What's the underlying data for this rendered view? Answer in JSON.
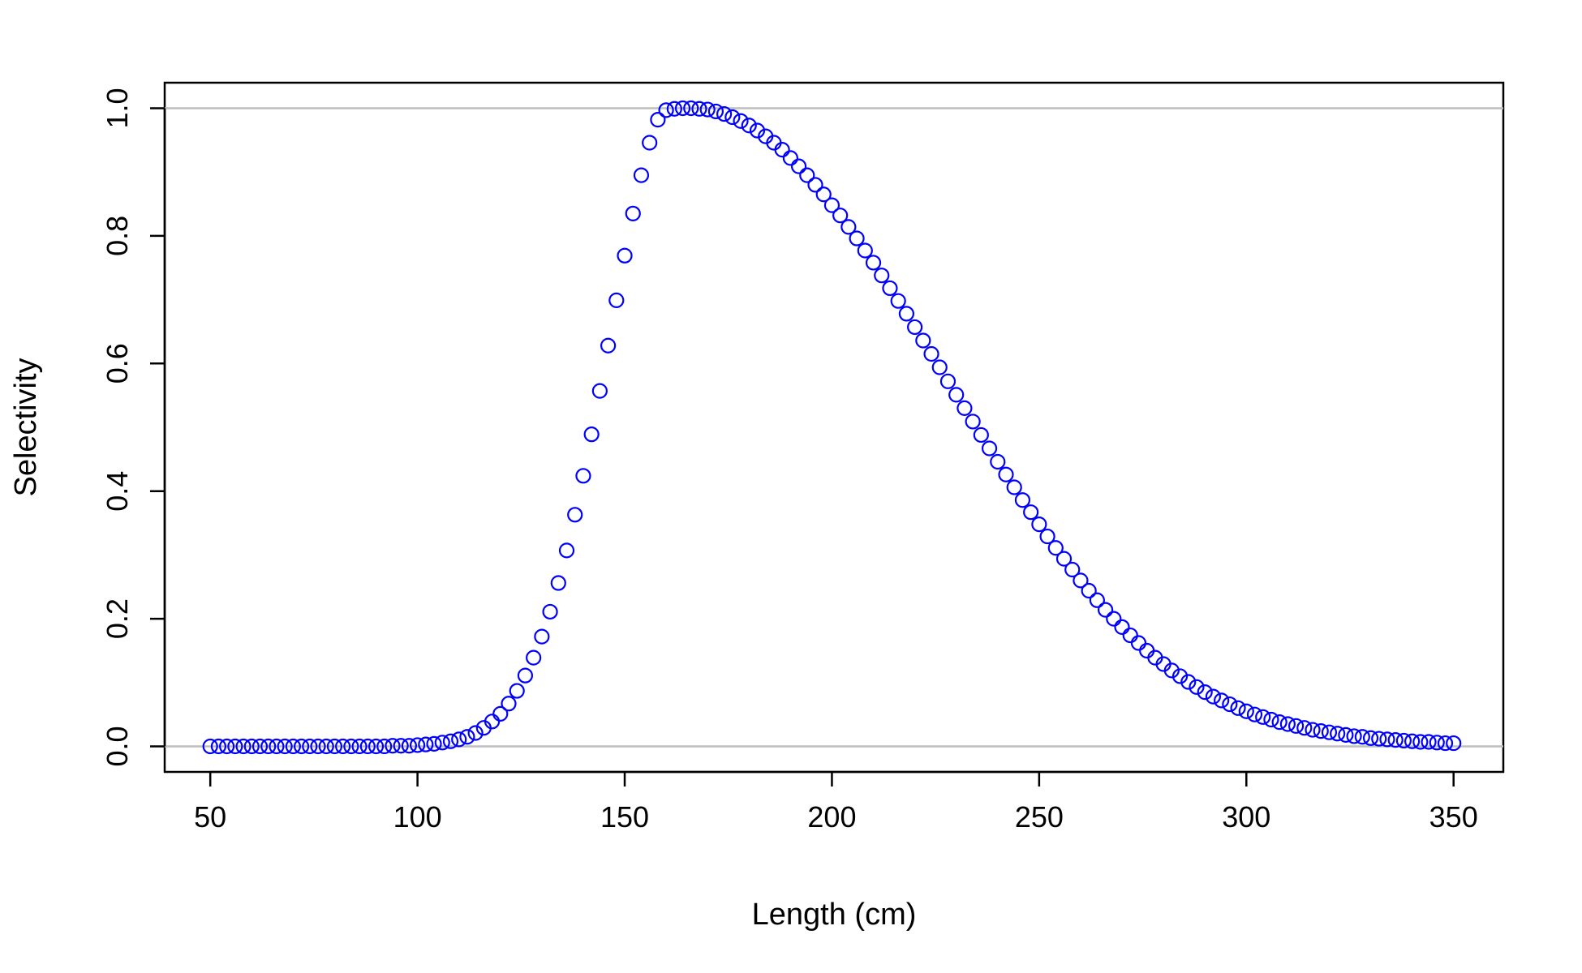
{
  "chart_data": {
    "type": "scatter",
    "title": "",
    "xlabel": "Length (cm)",
    "ylabel": "Selectivity",
    "xlim": [
      39,
      362
    ],
    "ylim": [
      -0.04,
      1.04
    ],
    "xticks": [
      50,
      100,
      150,
      200,
      250,
      300,
      350
    ],
    "yticks": [
      0.0,
      0.2,
      0.4,
      0.6,
      0.8,
      1.0
    ],
    "ytick_labels": [
      "0.0",
      "0.2",
      "0.4",
      "0.6",
      "0.8",
      "1.0"
    ],
    "reference_lines_y": [
      0.0,
      1.0
    ],
    "reference_line_color": "#bebebe",
    "point_color": "#0000ff",
    "marker": "open-circle",
    "grid": false,
    "series": [
      {
        "x": [
          50,
          52,
          54,
          56,
          58,
          60,
          62,
          64,
          66,
          68,
          70,
          72,
          74,
          76,
          78,
          80,
          82,
          84,
          86,
          88,
          90,
          92,
          94,
          96,
          98,
          100,
          102,
          104,
          106,
          108,
          110,
          112,
          114,
          116,
          118,
          120,
          122,
          124,
          126,
          128,
          130,
          132,
          134,
          136,
          138,
          140,
          142,
          144,
          146,
          148,
          150,
          152,
          154,
          156,
          158,
          160,
          162,
          164,
          166,
          168,
          170,
          172,
          174,
          176,
          178,
          180,
          182,
          184,
          186,
          188,
          190,
          192,
          194,
          196,
          198,
          200,
          202,
          204,
          206,
          208,
          210,
          212,
          214,
          216,
          218,
          220,
          222,
          224,
          226,
          228,
          230,
          232,
          234,
          236,
          238,
          240,
          242,
          244,
          246,
          248,
          250,
          252,
          254,
          256,
          258,
          260,
          262,
          264,
          266,
          268,
          270,
          272,
          274,
          276,
          278,
          280,
          282,
          284,
          286,
          288,
          290,
          292,
          294,
          296,
          298,
          300,
          302,
          304,
          306,
          308,
          310,
          312,
          314,
          316,
          318,
          320,
          322,
          324,
          326,
          328,
          330,
          332,
          334,
          336,
          338,
          340,
          342,
          344,
          346,
          348,
          350
        ],
        "y": [
          0.0,
          0.0,
          0.0,
          0.0,
          0.0,
          0.0,
          0.0,
          0.0,
          0.0,
          0.0,
          0.0,
          0.0,
          0.0,
          0.0,
          0.0,
          0.0,
          0.0,
          0.0,
          0.0,
          0.0,
          0.0,
          0.0,
          0.001,
          0.001,
          0.001,
          0.002,
          0.003,
          0.004,
          0.006,
          0.008,
          0.011,
          0.015,
          0.021,
          0.029,
          0.039,
          0.051,
          0.067,
          0.087,
          0.111,
          0.139,
          0.172,
          0.211,
          0.256,
          0.307,
          0.363,
          0.424,
          0.489,
          0.557,
          0.628,
          0.699,
          0.769,
          0.835,
          0.895,
          0.946,
          0.982,
          0.997,
          0.999,
          1.0,
          1.0,
          0.999,
          0.998,
          0.995,
          0.991,
          0.986,
          0.98,
          0.973,
          0.965,
          0.956,
          0.946,
          0.935,
          0.922,
          0.909,
          0.895,
          0.88,
          0.865,
          0.848,
          0.832,
          0.814,
          0.796,
          0.777,
          0.758,
          0.738,
          0.718,
          0.698,
          0.678,
          0.657,
          0.636,
          0.615,
          0.594,
          0.572,
          0.551,
          0.53,
          0.509,
          0.488,
          0.467,
          0.446,
          0.426,
          0.406,
          0.386,
          0.367,
          0.348,
          0.329,
          0.311,
          0.294,
          0.277,
          0.26,
          0.244,
          0.229,
          0.214,
          0.2,
          0.187,
          0.174,
          0.162,
          0.15,
          0.139,
          0.129,
          0.119,
          0.11,
          0.101,
          0.093,
          0.085,
          0.078,
          0.072,
          0.066,
          0.06,
          0.055,
          0.05,
          0.046,
          0.042,
          0.038,
          0.035,
          0.032,
          0.029,
          0.026,
          0.024,
          0.022,
          0.02,
          0.018,
          0.016,
          0.015,
          0.013,
          0.012,
          0.011,
          0.01,
          0.009,
          0.008,
          0.007,
          0.007,
          0.006,
          0.005,
          0.005
        ]
      }
    ]
  }
}
